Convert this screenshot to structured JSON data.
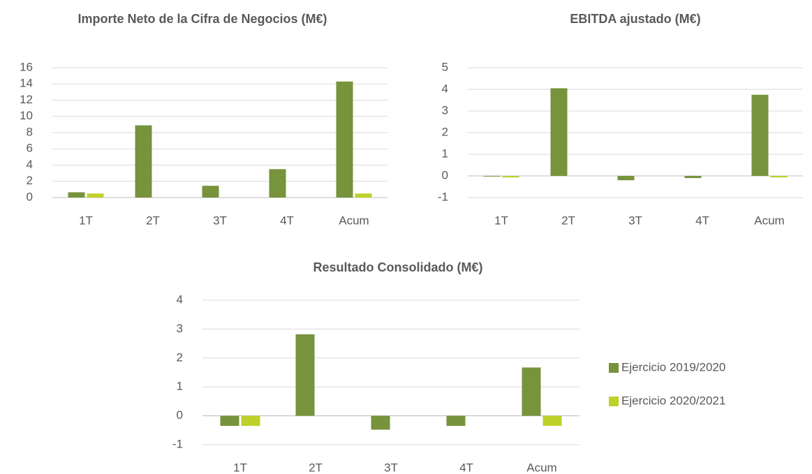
{
  "chart_data": [
    {
      "type": "bar",
      "title": "Importe Neto de la Cifra de Negocios (M€)",
      "categories": [
        "1T",
        "2T",
        "3T",
        "4T",
        "Acum"
      ],
      "series": [
        {
          "color": "#77933c",
          "values": [
            0.65,
            8.9,
            1.45,
            3.5,
            14.3
          ]
        },
        {
          "color": "#bdd12a",
          "values": [
            0.5,
            null,
            null,
            null,
            0.5
          ]
        }
      ],
      "ylim": [
        0,
        16
      ],
      "yticks": [
        0,
        2,
        4,
        6,
        8,
        10,
        12,
        14,
        16
      ],
      "grid": true
    },
    {
      "type": "bar",
      "title": "EBITDA ajustado (M€)",
      "categories": [
        "1T",
        "2T",
        "3T",
        "4T",
        "Acum"
      ],
      "series": [
        {
          "color": "#77933c",
          "values": [
            -0.03,
            4.05,
            -0.2,
            -0.1,
            3.75
          ]
        },
        {
          "color": "#bdd12a",
          "values": [
            -0.07,
            null,
            null,
            null,
            -0.07
          ]
        }
      ],
      "ylim": [
        -1,
        5
      ],
      "yticks": [
        -1,
        0,
        1,
        2,
        3,
        4,
        5
      ],
      "grid": true
    },
    {
      "type": "bar",
      "title": "Resultado Consolidado (M€)",
      "categories": [
        "1T",
        "2T",
        "3T",
        "4T",
        "Acum"
      ],
      "series": [
        {
          "name": "Ejercicio 2019/2020",
          "color": "#77933c",
          "values": [
            -0.35,
            2.82,
            -0.48,
            -0.35,
            1.67
          ]
        },
        {
          "name": "Ejercicio 2020/2021",
          "color": "#bdd12a",
          "values": [
            -0.35,
            null,
            null,
            null,
            -0.35
          ]
        }
      ],
      "ylim": [
        -1,
        4
      ],
      "yticks": [
        -1,
        0,
        1,
        2,
        3,
        4
      ],
      "grid": true,
      "legend": "right"
    }
  ]
}
